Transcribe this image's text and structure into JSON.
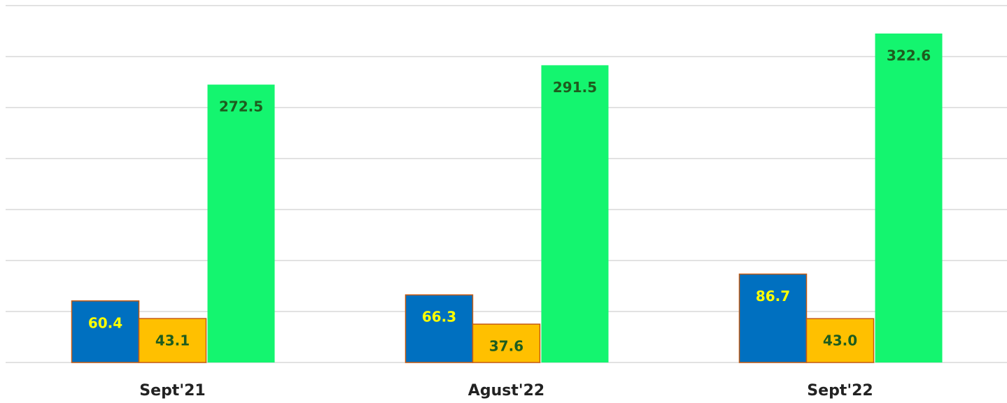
{
  "chart_data": {
    "type": "bar",
    "categories": [
      "Sept'21",
      "Agust'22",
      "Sept'22"
    ],
    "series": [
      {
        "color": "#0070c0",
        "label_color": "#ffff00",
        "values": [
          60.4,
          66.3,
          86.7
        ],
        "value_labels": [
          "60.4",
          "66.3",
          "86.7"
        ]
      },
      {
        "color": "#ffc000",
        "label_color": "#1e5c1e",
        "values": [
          43.1,
          37.6,
          43.0
        ],
        "value_labels": [
          "43.1",
          "37.6",
          "43.0"
        ]
      },
      {
        "color": "#14f56f",
        "label_color": "#1e5c1e",
        "values": [
          272.5,
          291.5,
          322.6
        ],
        "value_labels": [
          "272.5",
          "291.5",
          "322.6"
        ]
      }
    ],
    "ylim": [
      0,
      350
    ],
    "yticks": [
      0,
      50,
      100,
      150,
      200,
      250,
      300,
      350
    ],
    "grid": true
  }
}
